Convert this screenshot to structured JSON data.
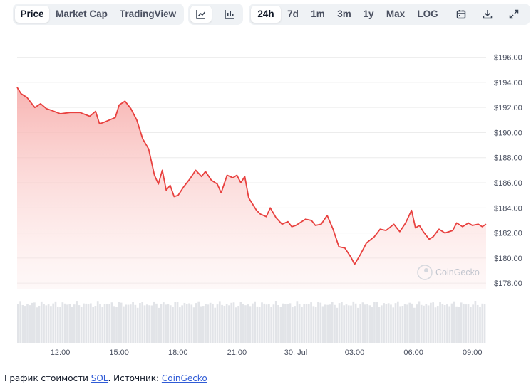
{
  "toolbar": {
    "view_tabs": [
      "Price",
      "Market Cap",
      "TradingView"
    ],
    "active_view": "Price",
    "chart_type_icons": [
      "line-chart-icon",
      "candlestick-chart-icon"
    ],
    "active_chart_type": "line-chart-icon",
    "ranges": [
      "24h",
      "7d",
      "1m",
      "3m",
      "1y",
      "Max"
    ],
    "active_range": "24h",
    "log_label": "LOG",
    "tool_icons": [
      "calendar-icon",
      "download-icon",
      "fullscreen-icon"
    ]
  },
  "watermark": "CoinGecko",
  "colors": {
    "line": "#e8413f",
    "fill_top": "#f8b7b5",
    "grid": "#ececec",
    "volume": "#e2e4e8",
    "link": "#2f5bd6"
  },
  "chart_data": {
    "type": "area",
    "x_tick_labels": [
      "12:00",
      "15:00",
      "18:00",
      "21:00",
      "30. Jul",
      "03:00",
      "06:00",
      "09:00"
    ],
    "y_tick_labels": [
      "$196.00",
      "$194.00",
      "$192.00",
      "$190.00",
      "$188.00",
      "$186.00",
      "$184.00",
      "$182.00",
      "$180.00",
      "$178.00"
    ],
    "y_ticks": [
      196,
      194,
      192,
      190,
      188,
      186,
      184,
      182,
      180,
      178
    ],
    "ylim": [
      177.5,
      196.6
    ],
    "x_range_hours": [
      9.8,
      33.7
    ],
    "series": [
      {
        "x": [
          9.8,
          10.0,
          10.3,
          10.7,
          11.0,
          11.3,
          11.5,
          12.0,
          12.5,
          13.0,
          13.5,
          13.8,
          14.0,
          14.2,
          14.5,
          14.8,
          15.0,
          15.3,
          15.6,
          15.9,
          16.2,
          16.5,
          16.8,
          17.0,
          17.2,
          17.4,
          17.6,
          17.8,
          18.0,
          18.3,
          18.6,
          18.9,
          19.2,
          19.4,
          19.7,
          20.0,
          20.2,
          20.5,
          20.8,
          21.0,
          21.2,
          21.4,
          21.6,
          21.8,
          22.0,
          22.2,
          22.5,
          22.7,
          23.0,
          23.3,
          23.6,
          23.8,
          24.0,
          24.2,
          24.5,
          24.8,
          25.0,
          25.3,
          25.6,
          25.9,
          26.2,
          26.5,
          26.8,
          27.0,
          27.3,
          27.6,
          28.0,
          28.3,
          28.6,
          29.0,
          29.3,
          29.6,
          29.9,
          30.1,
          30.3,
          30.5,
          30.8,
          31.0,
          31.3,
          31.6,
          32.0,
          32.2,
          32.5,
          32.8,
          33.0,
          33.3,
          33.5,
          33.7
        ],
        "values": [
          193.6,
          193.1,
          192.8,
          192.0,
          192.3,
          191.9,
          191.8,
          191.5,
          191.6,
          191.6,
          191.3,
          191.7,
          190.7,
          190.8,
          191.0,
          191.2,
          192.2,
          192.5,
          191.9,
          191.0,
          189.5,
          188.7,
          186.6,
          185.9,
          187.0,
          185.4,
          185.8,
          184.9,
          185.0,
          185.7,
          186.3,
          187.0,
          186.5,
          186.9,
          186.2,
          185.9,
          185.2,
          186.6,
          186.4,
          186.6,
          186.0,
          186.5,
          184.8,
          184.3,
          183.8,
          183.5,
          183.3,
          184.0,
          183.2,
          182.7,
          182.9,
          182.5,
          182.6,
          182.8,
          183.1,
          183.0,
          182.6,
          182.7,
          183.4,
          182.3,
          180.9,
          180.8,
          180.1,
          179.5,
          180.3,
          181.2,
          181.7,
          182.3,
          182.2,
          182.7,
          182.1,
          182.8,
          183.8,
          182.4,
          182.6,
          182.1,
          181.5,
          181.7,
          182.3,
          182.0,
          182.2,
          182.8,
          182.5,
          182.8,
          182.6,
          182.7,
          182.5,
          182.7
        ]
      }
    ],
    "volume_bars": {
      "count": 200,
      "level_range": [
        0.68,
        0.82
      ]
    }
  },
  "caption": {
    "prefix": "График стоимости ",
    "asset_link": "SOL",
    "middle": ". Источник: ",
    "source_link": "CoinGecko"
  }
}
